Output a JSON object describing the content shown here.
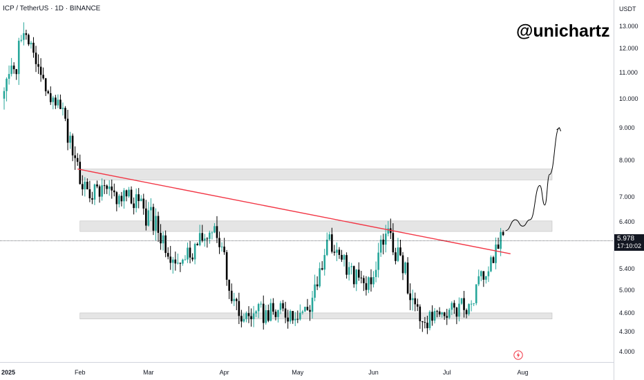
{
  "header": {
    "symbol_line": "ICP / TetherUS · 1D · BINANCE",
    "watermark": "@unichartz",
    "currency": "USDT"
  },
  "price_axis": {
    "ticks": [
      "13.000",
      "12.000",
      "11.000",
      "10.000",
      "9.000",
      "8.000",
      "7.000",
      "6.400",
      "5.400",
      "5.000",
      "4.600",
      "4.300",
      "4.000"
    ],
    "current_price": "5.978",
    "countdown": "17:10:02"
  },
  "time_axis": {
    "labels": [
      "2025",
      "Feb",
      "Mar",
      "Apr",
      "May",
      "Jun",
      "Jul",
      "Aug"
    ]
  },
  "colors": {
    "up": "#26a69a",
    "down": "#000000",
    "trendline": "#f23645",
    "zone_fill": "#e5e5e5",
    "zone_border": "#bfbfbf",
    "price_line": "#131722",
    "event_icon": "#f23645"
  },
  "icons": {
    "event": "lightning-bolt-icon"
  },
  "chart_data": {
    "type": "candlestick",
    "title": "ICP / TetherUS · 1D · BINANCE",
    "y_scale": "log",
    "ylim": [
      3.85,
      14.3
    ],
    "x_range": [
      "2025-01-01",
      "2025-08-18"
    ],
    "grid": false,
    "current_price": 5.978,
    "segments": [
      {
        "from": "2025-01-01",
        "to": "2025-01-11",
        "start": 10.0,
        "end": 12.6,
        "vol": 0.045,
        "seed": 1
      },
      {
        "from": "2025-01-11",
        "to": "2025-01-20",
        "start": 12.6,
        "end": 10.2,
        "vol": 0.04,
        "seed": 2
      },
      {
        "from": "2025-01-20",
        "to": "2025-01-27",
        "start": 10.2,
        "end": 9.3,
        "vol": 0.03,
        "seed": 3
      },
      {
        "from": "2025-01-27",
        "to": "2025-02-03",
        "start": 9.3,
        "end": 7.2,
        "vol": 0.05,
        "seed": 4
      },
      {
        "from": "2025-02-03",
        "to": "2025-02-26",
        "start": 7.2,
        "end": 6.9,
        "vol": 0.035,
        "seed": 5
      },
      {
        "from": "2025-02-26",
        "to": "2025-03-15",
        "start": 6.9,
        "end": 5.5,
        "vol": 0.045,
        "seed": 6
      },
      {
        "from": "2025-03-15",
        "to": "2025-03-29",
        "start": 5.5,
        "end": 6.3,
        "vol": 0.035,
        "seed": 7
      },
      {
        "from": "2025-03-29",
        "to": "2025-04-08",
        "start": 6.3,
        "end": 4.55,
        "vol": 0.045,
        "seed": 8
      },
      {
        "from": "2025-04-08",
        "to": "2025-05-06",
        "start": 4.55,
        "end": 4.65,
        "vol": 0.035,
        "seed": 9
      },
      {
        "from": "2025-05-06",
        "to": "2025-05-14",
        "start": 4.65,
        "end": 6.0,
        "vol": 0.04,
        "seed": 10
      },
      {
        "from": "2025-05-14",
        "to": "2025-05-30",
        "start": 6.0,
        "end": 5.0,
        "vol": 0.035,
        "seed": 11
      },
      {
        "from": "2025-05-30",
        "to": "2025-06-08",
        "start": 5.0,
        "end": 6.25,
        "vol": 0.04,
        "seed": 12
      },
      {
        "from": "2025-06-08",
        "to": "2025-06-22",
        "start": 6.25,
        "end": 4.45,
        "vol": 0.045,
        "seed": 13
      },
      {
        "from": "2025-06-22",
        "to": "2025-07-11",
        "start": 4.45,
        "end": 4.75,
        "vol": 0.03,
        "seed": 14
      },
      {
        "from": "2025-07-11",
        "to": "2025-07-25",
        "start": 4.75,
        "end": 6.1,
        "vol": 0.03,
        "seed": 15
      }
    ],
    "annotations": {
      "trendline": {
        "x": [
          "2025-01-31",
          "2025-07-27"
        ],
        "y": [
          7.75,
          5.7
        ]
      },
      "zones": [
        {
          "x": [
            "2025-02-01",
            "2025-08-13"
          ],
          "y": [
            7.45,
            7.75
          ]
        },
        {
          "x": [
            "2025-02-01",
            "2025-08-13"
          ],
          "y": [
            6.18,
            6.42
          ]
        },
        {
          "x": [
            "2025-02-01",
            "2025-08-13"
          ],
          "y": [
            4.5,
            4.6
          ]
        }
      ],
      "projection": {
        "x": [
          "2025-07-25",
          "2025-07-29",
          "2025-08-01",
          "2025-08-04",
          "2025-08-08",
          "2025-08-10",
          "2025-08-12",
          "2025-08-16"
        ],
        "y": [
          6.2,
          6.45,
          6.3,
          6.45,
          7.3,
          6.8,
          7.6,
          9.0
        ]
      }
    }
  }
}
